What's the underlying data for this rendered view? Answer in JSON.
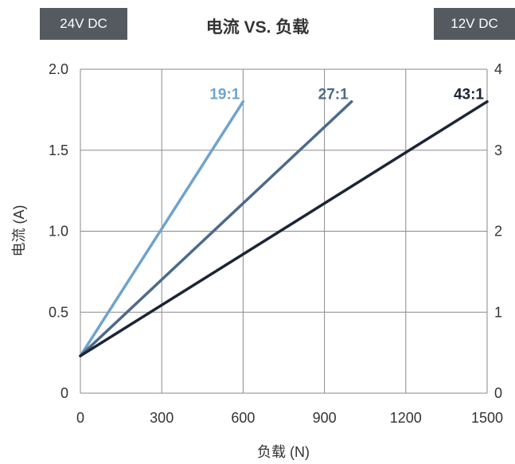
{
  "header": {
    "badge_left": "24V DC",
    "badge_right": "12V DC",
    "title": "电流 VS. 负载"
  },
  "colors": {
    "badge_bg": "#555a60",
    "grid": "#8a8a8a",
    "series_19": "#6fa3cc",
    "series_27": "#4d6a8a",
    "series_43": "#1c2536"
  },
  "chart_data": {
    "type": "line",
    "title": "电流 VS. 负载",
    "xlabel": "负载 (N)",
    "ylabel": "电流 (A)",
    "xlim": [
      0,
      1500
    ],
    "ylim": [
      0,
      2.0
    ],
    "y2lim": [
      0,
      4
    ],
    "x_ticks": [
      "0",
      "300",
      "600",
      "900",
      "1200",
      "1500"
    ],
    "y_ticks": [
      "0",
      "0.5",
      "1.0",
      "1.5",
      "2.0"
    ],
    "y2_ticks": [
      "0",
      "1",
      "2",
      "3",
      "4"
    ],
    "grid": true,
    "series": [
      {
        "name": "19:1",
        "x": [
          0,
          600
        ],
        "y": [
          0.23,
          1.8
        ],
        "color": "#6fa3cc"
      },
      {
        "name": "27:1",
        "x": [
          0,
          1000
        ],
        "y": [
          0.23,
          1.8
        ],
        "color": "#4d6a8a"
      },
      {
        "name": "43:1",
        "x": [
          0,
          1500
        ],
        "y": [
          0.23,
          1.8
        ],
        "color": "#1c2536"
      }
    ]
  }
}
